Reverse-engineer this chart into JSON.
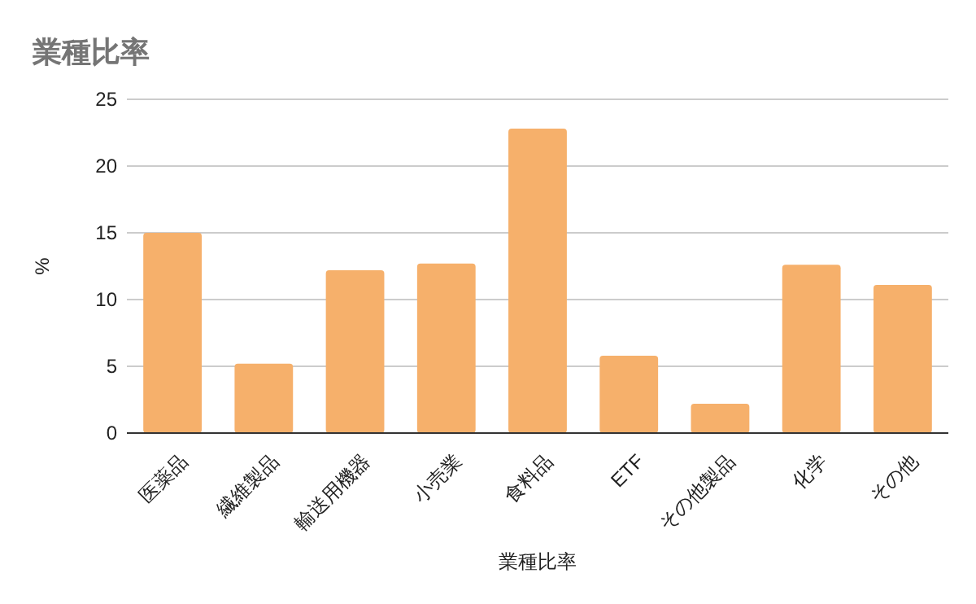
{
  "chart_data": {
    "type": "bar",
    "title": "業種比率",
    "xlabel": "業種比率",
    "ylabel": "%",
    "categories": [
      "医薬品",
      "繊維製品",
      "輸送用機器",
      "小売業",
      "食料品",
      "ETF",
      "その他製品",
      "化学",
      "その他"
    ],
    "values": [
      15.0,
      5.2,
      12.2,
      12.7,
      22.8,
      5.8,
      2.2,
      12.6,
      11.1
    ],
    "color": "#f6b06b",
    "ylim": [
      0,
      25
    ],
    "yticks": [
      0,
      5,
      10,
      15,
      20,
      25
    ],
    "grid": "y"
  }
}
